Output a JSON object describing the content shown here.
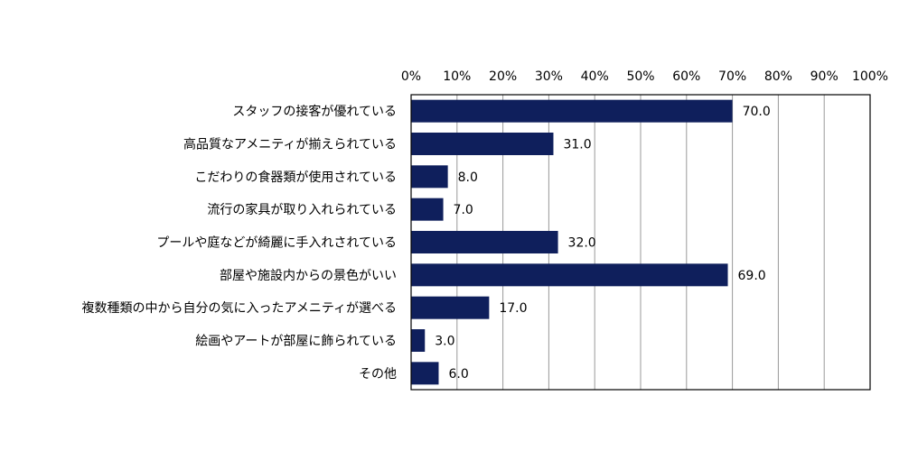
{
  "chart_data": {
    "type": "bar",
    "orientation": "horizontal",
    "categories": [
      "スタッフの接客が優れている",
      "高品質なアメニティが揃えられている",
      "こだわりの食器類が使用されている",
      "流行の家具が取り入れられている",
      "プールや庭などが綺麗に手入れされている",
      "部屋や施設内からの景色がいい",
      "複数種類の中から自分の気に入ったアメニティが選べる",
      "絵画やアートが部屋に飾られている",
      "その他"
    ],
    "values": [
      70.0,
      31.0,
      8.0,
      7.0,
      32.0,
      69.0,
      17.0,
      3.0,
      6.0
    ],
    "data_labels": [
      "70.0",
      "31.0",
      "8.0",
      "7.0",
      "32.0",
      "69.0",
      "17.0",
      "3.0",
      "6.0"
    ],
    "xlim": [
      0,
      100
    ],
    "x_ticks": [
      "0%",
      "10%",
      "20%",
      "30%",
      "40%",
      "50%",
      "60%",
      "70%",
      "80%",
      "90%",
      "100%"
    ],
    "x_tick_values": [
      0,
      10,
      20,
      30,
      40,
      50,
      60,
      70,
      80,
      90,
      100
    ],
    "x_axis_position": "top",
    "grid": true,
    "legend": "none",
    "title": "",
    "xlabel": "",
    "ylabel": "",
    "colors": {
      "bar": "#0f1f5c",
      "grid": "#999999",
      "frame": "#000000"
    }
  }
}
